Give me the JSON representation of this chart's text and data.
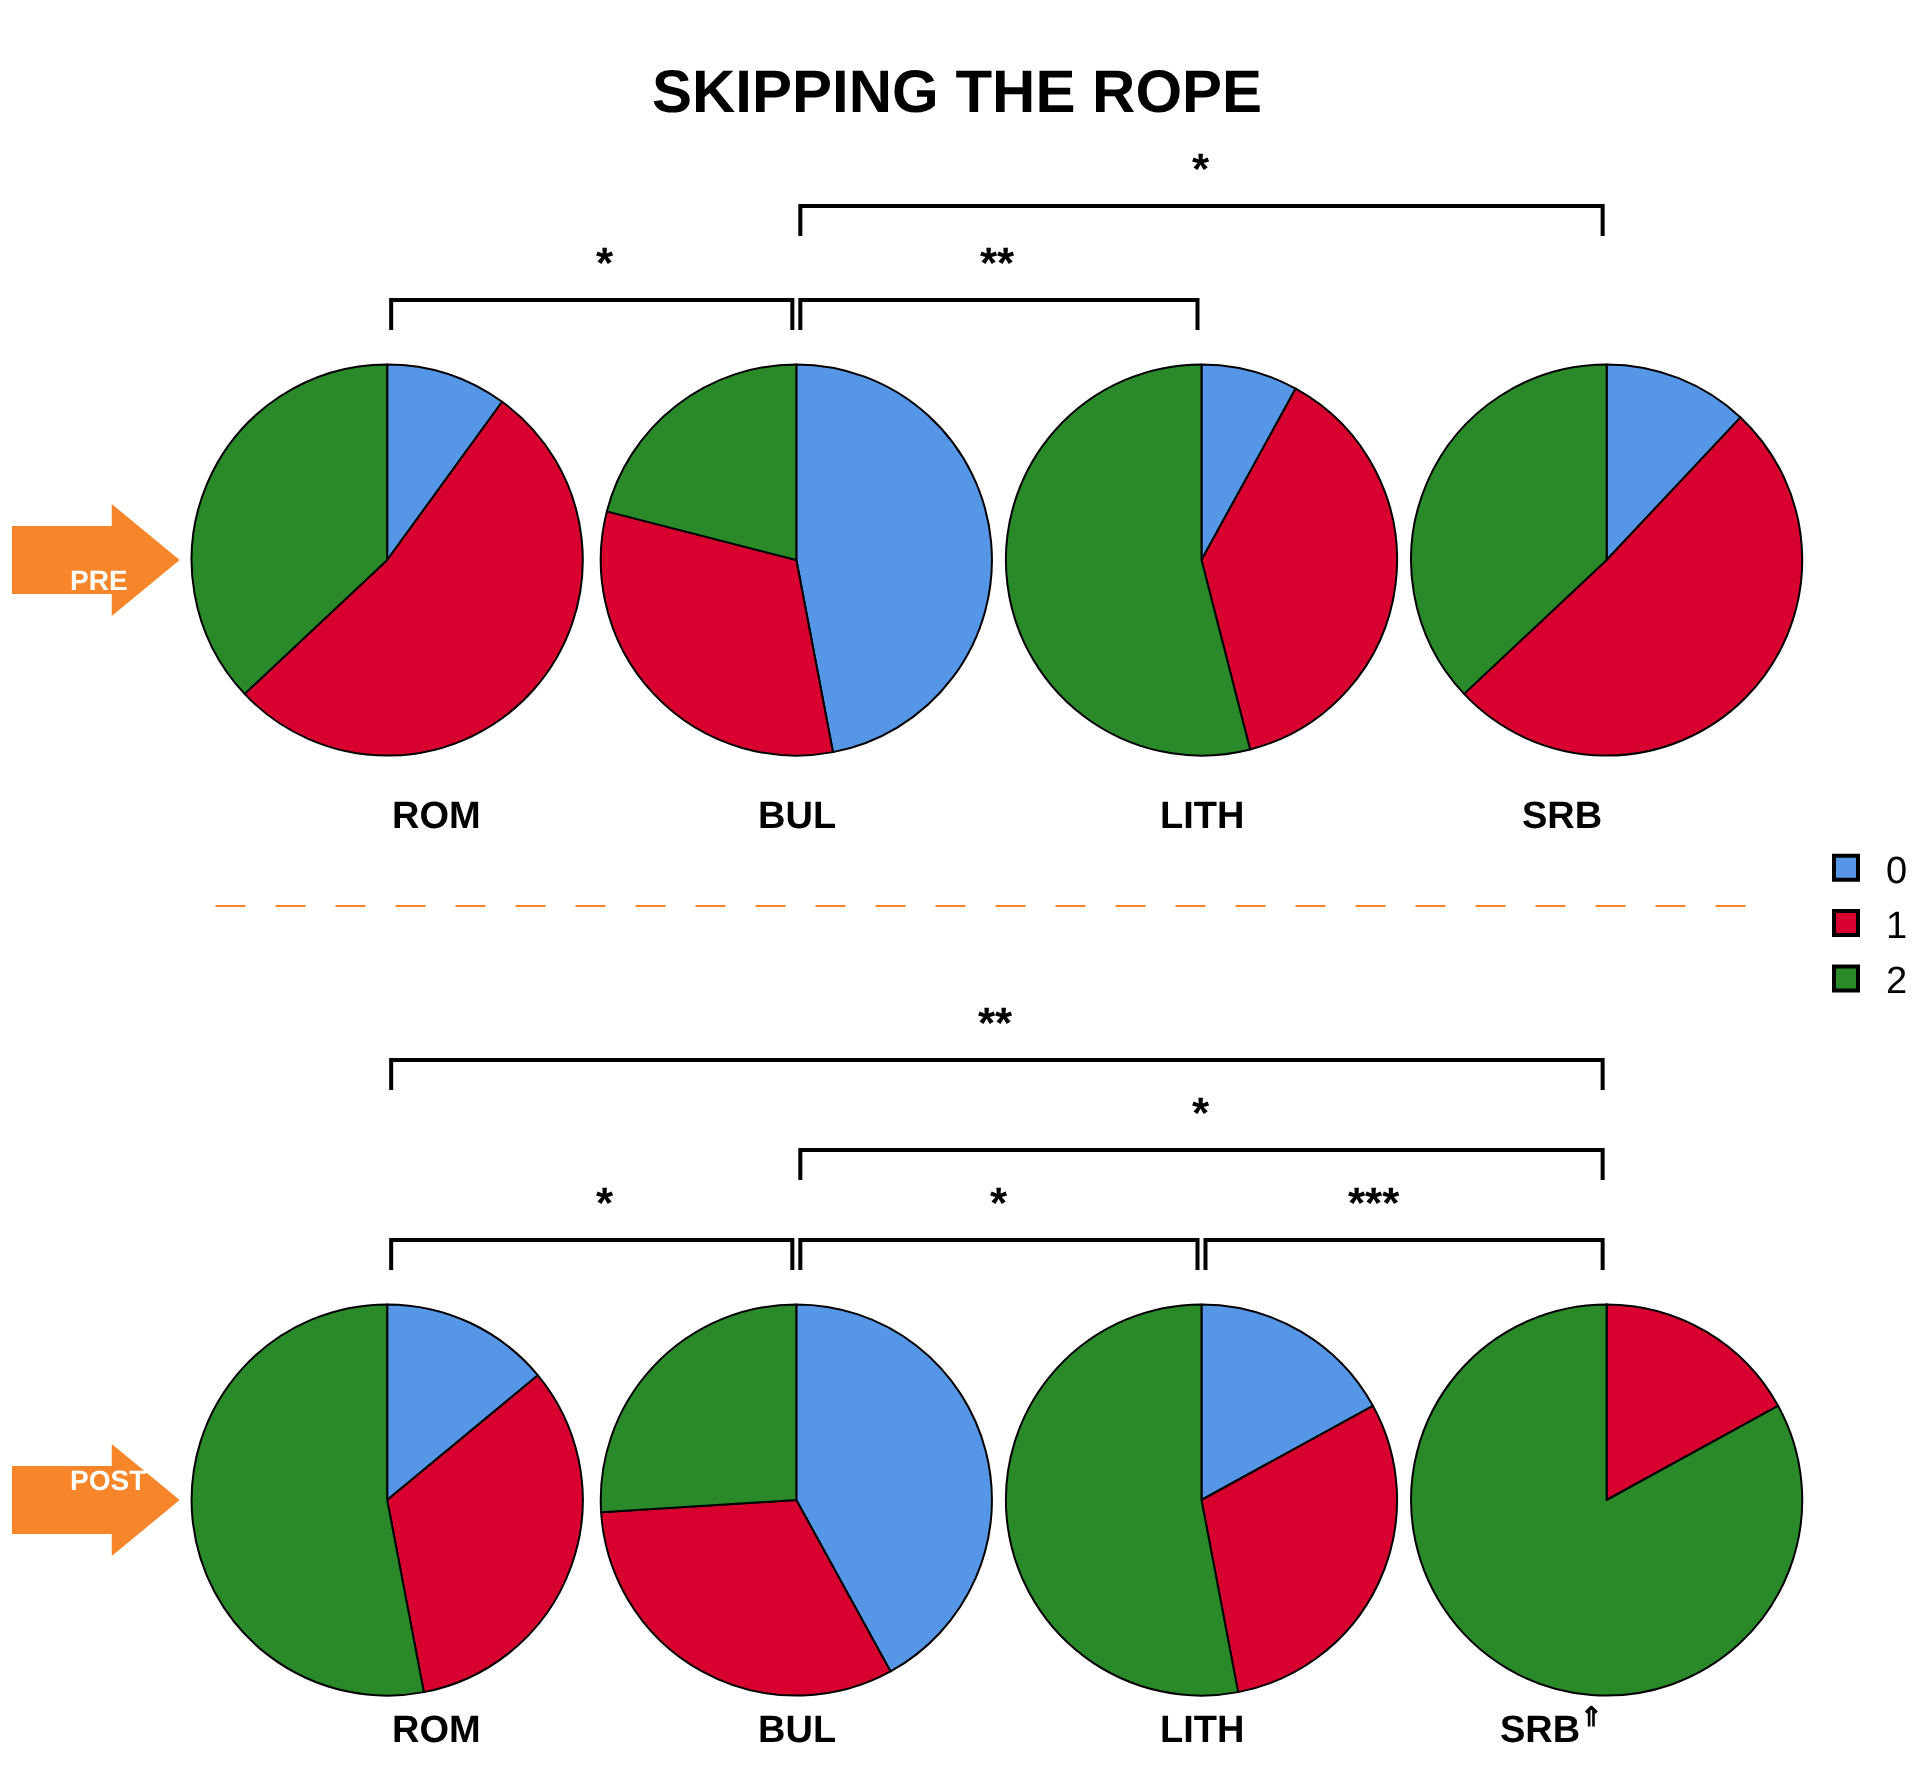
{
  "chart_data": [
    {
      "type": "other",
      "title": "SKIPPING THE ROPE"
    },
    {
      "type": "pie",
      "title": "ROM",
      "categories": [
        "0",
        "1",
        "2"
      ],
      "values": [
        10,
        53,
        37
      ],
      "colors": [
        "#5596e6",
        "#d7002f",
        "#2a8a2a"
      ],
      "legend": "right",
      "annotations": [
        "PRE",
        "*",
        "**",
        "*"
      ]
    },
    {
      "type": "pie",
      "title": "BUL",
      "categories": [
        null,
        null,
        null
      ],
      "values": [
        47,
        32,
        21
      ],
      "colors": [
        "#5596e6",
        "#d7002f",
        "#2a8a2a"
      ]
    },
    {
      "type": "pie",
      "title": "LITH",
      "categories": [
        null,
        null,
        null
      ],
      "values": [
        8,
        38,
        54
      ],
      "colors": [
        "#5596e6",
        "#d7002f",
        "#2a8a2a"
      ]
    },
    {
      "type": "pie",
      "title": "SRB",
      "categories": [
        null,
        null,
        null
      ],
      "values": [
        12,
        51,
        37
      ],
      "colors": [
        "#5596e6",
        "#d7002f",
        "#2a8a2a"
      ]
    },
    {
      "type": "pie",
      "title": "ROM",
      "categories": [
        null,
        null,
        null
      ],
      "values": [
        14,
        33,
        53
      ],
      "colors": [
        "#5596e6",
        "#d7002f",
        "#2a8a2a"
      ],
      "annotations": [
        "POST",
        "**",
        "*",
        "*",
        "*",
        "***"
      ]
    },
    {
      "type": "pie",
      "title": "BUL",
      "categories": [
        null,
        null,
        null
      ],
      "values": [
        42,
        32,
        26
      ],
      "colors": [
        "#5596e6",
        "#d7002f",
        "#2a8a2a"
      ]
    },
    {
      "type": "pie",
      "title": "LITH",
      "categories": [
        null,
        null,
        null
      ],
      "values": [
        17,
        30,
        53
      ],
      "colors": [
        "#5596e6",
        "#d7002f",
        "#2a8a2a"
      ]
    },
    {
      "type": "pie",
      "title": "SRB$^{⇑}$",
      "categories": [
        null,
        null,
        null
      ],
      "values": [
        0,
        17,
        83
      ],
      "colors": [
        "#5596e6",
        "#d7002f",
        "#2a8a2a"
      ]
    }
  ]
}
